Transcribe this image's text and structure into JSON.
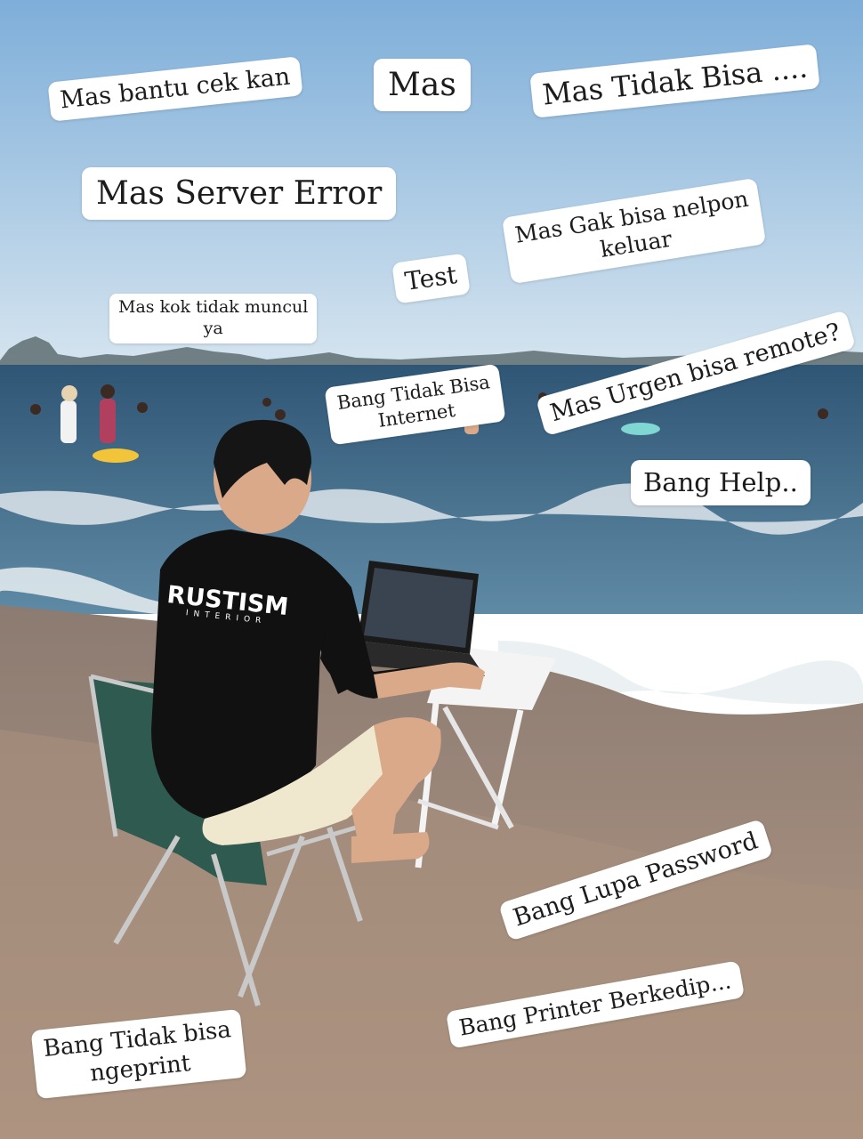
{
  "scene": {
    "palette": {
      "sky_top": "#7eaed9",
      "sky_bottom": "#d5e4ef",
      "sea": "#2f5675",
      "sea_light": "#5f8aa5",
      "foam": "#e8eef1",
      "sand": "#b49a86",
      "wet_sand": "#8c7b72",
      "shirt": "#111111",
      "shorts": "#efe8cf",
      "skin": "#d9a98a",
      "chair": "#2f5a4f",
      "table": "#f4f4f4"
    },
    "shirt_logo": "RUSTISM",
    "shirt_logo_sub": "INTERIOR"
  },
  "messages": [
    {
      "id": "bantu-cek",
      "text": "Mas bantu cek kan"
    },
    {
      "id": "mas",
      "text": "Mas"
    },
    {
      "id": "tidak-bisa",
      "text": "Mas Tidak Bisa ...."
    },
    {
      "id": "server-error",
      "text": "Mas Server Error"
    },
    {
      "id": "gak-bisa-nelpon",
      "line1": "Mas Gak bisa nelpon",
      "line2": "keluar"
    },
    {
      "id": "test",
      "text": "Test"
    },
    {
      "id": "kok-tidak-muncul",
      "line1": "Mas kok tidak muncul",
      "line2": "ya"
    },
    {
      "id": "tidak-bisa-internet",
      "line1": "Bang Tidak Bisa",
      "line2": "Internet"
    },
    {
      "id": "urgen-remote",
      "text": "Mas Urgen bisa remote?"
    },
    {
      "id": "help",
      "text": "Bang Help.."
    },
    {
      "id": "lupa-password",
      "text": "Bang Lupa Password"
    },
    {
      "id": "printer-berkedip",
      "text": "Bang Printer Berkedip..."
    },
    {
      "id": "tidak-bisa-ngeprint",
      "line1": "Bang Tidak bisa",
      "line2": "ngeprint"
    }
  ]
}
